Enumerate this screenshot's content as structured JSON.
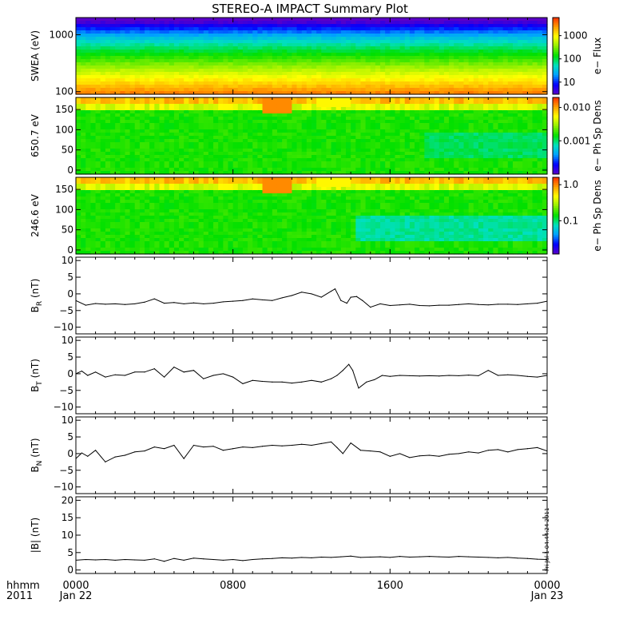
{
  "title": "STEREO-A IMPACT Summary Plot",
  "time_axis": {
    "corner_label_top": "hhmm",
    "corner_label_bottom": "2011",
    "ticks": [
      {
        "hour": 0,
        "label": "0000",
        "date": "Jan 22"
      },
      {
        "hour": 8,
        "label": "0800",
        "date": ""
      },
      {
        "hour": 16,
        "label": "1600",
        "date": ""
      },
      {
        "hour": 24,
        "label": "0000",
        "date": "Jan 23"
      }
    ]
  },
  "timestamp": "Fri Jul 1 04:44:24 2011",
  "colors": {
    "spectrogram_scale": [
      "#5a00c8",
      "#0000ff",
      "#00a0ff",
      "#00e0c0",
      "#00e000",
      "#90f000",
      "#ffff00",
      "#ffa000",
      "#ff3000"
    ],
    "line": "#000000",
    "axes": "#000000",
    "background": "#ffffff"
  },
  "chart_data": [
    {
      "id": "swea",
      "type": "heatmap",
      "ylabel": "SWEA (eV)",
      "yscale": "log",
      "ylim": [
        90,
        2000
      ],
      "yticks": [
        {
          "value": 1000,
          "label": "1000"
        },
        {
          "value": 100,
          "label": "100"
        }
      ],
      "colorbar": {
        "label": "e− Flux",
        "scale": "log",
        "range": [
          3,
          6000
        ],
        "ticks": [
          {
            "value": 1000,
            "label": "1000"
          },
          {
            "value": 100,
            "label": "100"
          },
          {
            "value": 10,
            "label": "10"
          }
        ]
      }
    },
    {
      "id": "pad650",
      "type": "heatmap",
      "ylabel": "650.7 eV",
      "yscale": "linear",
      "ylim": [
        -10,
        180
      ],
      "yticks": [
        {
          "value": 150,
          "label": "150"
        },
        {
          "value": 100,
          "label": "100"
        },
        {
          "value": 50,
          "label": "50"
        },
        {
          "value": 0,
          "label": "0"
        }
      ],
      "colorbar": {
        "label": "e− Ph Sp Dens",
        "scale": "log",
        "range": [
          0.0001,
          0.02
        ],
        "ticks": [
          {
            "value": 0.01,
            "label": "0.010"
          },
          {
            "value": 0.001,
            "label": "0.001"
          }
        ]
      }
    },
    {
      "id": "pad246",
      "type": "heatmap",
      "ylabel": "246.6 eV",
      "yscale": "linear",
      "ylim": [
        -10,
        180
      ],
      "yticks": [
        {
          "value": 150,
          "label": "150"
        },
        {
          "value": 100,
          "label": "100"
        },
        {
          "value": 50,
          "label": "50"
        },
        {
          "value": 0,
          "label": "0"
        }
      ],
      "colorbar": {
        "label": "e− Ph Sp Dens",
        "scale": "log",
        "range": [
          0.012,
          1.6
        ],
        "ticks": [
          {
            "value": 1.0,
            "label": "1.0"
          },
          {
            "value": 0.1,
            "label": "0.1"
          }
        ]
      }
    },
    {
      "id": "br",
      "type": "line",
      "ylabel": "B_R (nT)",
      "ylim": [
        -12,
        11
      ],
      "yticks": [
        {
          "value": 10,
          "label": "10"
        },
        {
          "value": 5,
          "label": "5"
        },
        {
          "value": 0,
          "label": "0"
        },
        {
          "value": -5,
          "label": "−5"
        },
        {
          "value": -10,
          "label": "−10"
        }
      ],
      "x": [
        0,
        0.5,
        1,
        1.5,
        2,
        2.5,
        3,
        3.5,
        4,
        4.5,
        5,
        5.5,
        6,
        6.5,
        7,
        7.5,
        8,
        8.5,
        9,
        9.5,
        10,
        10.5,
        11,
        11.5,
        12,
        12.5,
        13,
        13.2,
        13.5,
        13.8,
        14,
        14.3,
        14.6,
        15,
        15.5,
        16,
        16.5,
        17,
        17.5,
        18,
        18.5,
        19,
        19.5,
        20,
        20.5,
        21,
        21.5,
        22,
        22.5,
        23,
        23.5,
        24
      ],
      "values": [
        -2,
        -3.4,
        -2.9,
        -3.1,
        -3,
        -3.2,
        -3,
        -2.5,
        -1.5,
        -2.8,
        -2.6,
        -3,
        -2.7,
        -3,
        -2.8,
        -2.4,
        -2.2,
        -2,
        -1.5,
        -1.8,
        -2,
        -1.2,
        -0.5,
        0.5,
        0,
        -1,
        0.8,
        1.5,
        -2,
        -2.8,
        -1,
        -0.8,
        -2,
        -4,
        -3,
        -3.5,
        -3.3,
        -3.1,
        -3.5,
        -3.6,
        -3.4,
        -3.4,
        -3.2,
        -3,
        -3.2,
        -3.3,
        -3.1,
        -3.1,
        -3.2,
        -3,
        -2.8,
        -2.2
      ]
    },
    {
      "id": "bt",
      "type": "line",
      "ylabel": "B_T (nT)",
      "ylim": [
        -12,
        11
      ],
      "yticks": [
        {
          "value": 10,
          "label": "10"
        },
        {
          "value": 5,
          "label": "5"
        },
        {
          "value": 0,
          "label": "0"
        },
        {
          "value": -5,
          "label": "−5"
        },
        {
          "value": -10,
          "label": "−10"
        }
      ],
      "x": [
        0,
        0.3,
        0.6,
        1,
        1.5,
        2,
        2.5,
        3,
        3.5,
        4,
        4.5,
        5,
        5.5,
        6,
        6.5,
        7,
        7.5,
        8,
        8.5,
        9,
        9.5,
        10,
        10.5,
        11,
        11.5,
        12,
        12.5,
        13,
        13.3,
        13.6,
        13.9,
        14.1,
        14.4,
        14.8,
        15.2,
        15.6,
        16,
        16.5,
        17,
        17.5,
        18,
        18.5,
        19,
        19.5,
        20,
        20.5,
        21,
        21.5,
        22,
        22.5,
        23,
        23.5,
        24
      ],
      "values": [
        0,
        0.8,
        -0.5,
        0.5,
        -1,
        -0.3,
        -0.5,
        0.5,
        0.5,
        1.5,
        -1,
        2,
        0.5,
        1,
        -1.5,
        -0.5,
        0,
        -1,
        -3,
        -2,
        -2.3,
        -2.5,
        -2.5,
        -2.8,
        -2.5,
        -2,
        -2.5,
        -1.5,
        -0.5,
        1,
        2.8,
        1,
        -4.3,
        -2.5,
        -1.8,
        -0.5,
        -0.8,
        -0.5,
        -0.6,
        -0.7,
        -0.6,
        -0.7,
        -0.5,
        -0.6,
        -0.4,
        -0.6,
        1,
        -0.5,
        -0.3,
        -0.5,
        -0.8,
        -1,
        -0.5
      ]
    },
    {
      "id": "bn",
      "type": "line",
      "ylabel": "B_N (nT)",
      "ylim": [
        -12,
        11
      ],
      "yticks": [
        {
          "value": 10,
          "label": "10"
        },
        {
          "value": 5,
          "label": "5"
        },
        {
          "value": 0,
          "label": "0"
        },
        {
          "value": -5,
          "label": "−5"
        },
        {
          "value": -10,
          "label": "−10"
        }
      ],
      "x": [
        0,
        0.3,
        0.6,
        1,
        1.5,
        2,
        2.5,
        3,
        3.5,
        4,
        4.5,
        5,
        5.5,
        6,
        6.5,
        7,
        7.5,
        8,
        8.5,
        9,
        9.5,
        10,
        10.5,
        11,
        11.5,
        12,
        12.5,
        13,
        13.3,
        13.6,
        14,
        14.5,
        15,
        15.5,
        16,
        16.5,
        17,
        17.5,
        18,
        18.5,
        19,
        19.5,
        20,
        20.5,
        21,
        21.5,
        22,
        22.5,
        23,
        23.5,
        24
      ],
      "values": [
        -1.5,
        0.2,
        -0.8,
        1,
        -2.5,
        -1,
        -0.5,
        0.5,
        0.8,
        2,
        1.5,
        2.5,
        -1.5,
        2.5,
        2,
        2.2,
        1,
        1.5,
        2,
        1.8,
        2.2,
        2.5,
        2.3,
        2.5,
        2.8,
        2.5,
        3,
        3.5,
        1.8,
        0,
        3.2,
        1,
        0.8,
        0.5,
        -0.8,
        0,
        -1.2,
        -0.7,
        -0.5,
        -0.8,
        -0.2,
        0,
        0.5,
        0.2,
        1,
        1.2,
        0.5,
        1.2,
        1.5,
        1.8,
        0.8
      ]
    },
    {
      "id": "bmag",
      "type": "line",
      "ylabel": "|B| (nT)",
      "ylim": [
        -1,
        21
      ],
      "yticks": [
        {
          "value": 20,
          "label": "20"
        },
        {
          "value": 15,
          "label": "15"
        },
        {
          "value": 10,
          "label": "10"
        },
        {
          "value": 5,
          "label": "5"
        },
        {
          "value": 0,
          "label": "0"
        }
      ],
      "x": [
        0,
        0.5,
        1,
        1.5,
        2,
        2.5,
        3,
        3.5,
        4,
        4.5,
        5,
        5.5,
        6,
        6.5,
        7,
        7.5,
        8,
        8.5,
        9,
        9.5,
        10,
        10.5,
        11,
        11.5,
        12,
        12.5,
        13,
        13.5,
        14,
        14.5,
        15,
        15.5,
        16,
        16.5,
        17,
        17.5,
        18,
        18.5,
        19,
        19.5,
        20,
        20.5,
        21,
        21.5,
        22,
        22.5,
        23,
        23.5,
        24
      ],
      "values": [
        2.8,
        3,
        2.9,
        3,
        2.8,
        3,
        2.9,
        2.8,
        3.2,
        2.5,
        3.3,
        2.8,
        3.4,
        3.2,
        3,
        2.8,
        3,
        2.7,
        3,
        3.2,
        3.3,
        3.5,
        3.4,
        3.6,
        3.5,
        3.7,
        3.6,
        3.8,
        4,
        3.6,
        3.7,
        3.8,
        3.6,
        3.9,
        3.7,
        3.8,
        3.9,
        3.8,
        3.7,
        3.9,
        3.8,
        3.7,
        3.6,
        3.5,
        3.6,
        3.4,
        3.3,
        3.1,
        3.0
      ]
    }
  ]
}
